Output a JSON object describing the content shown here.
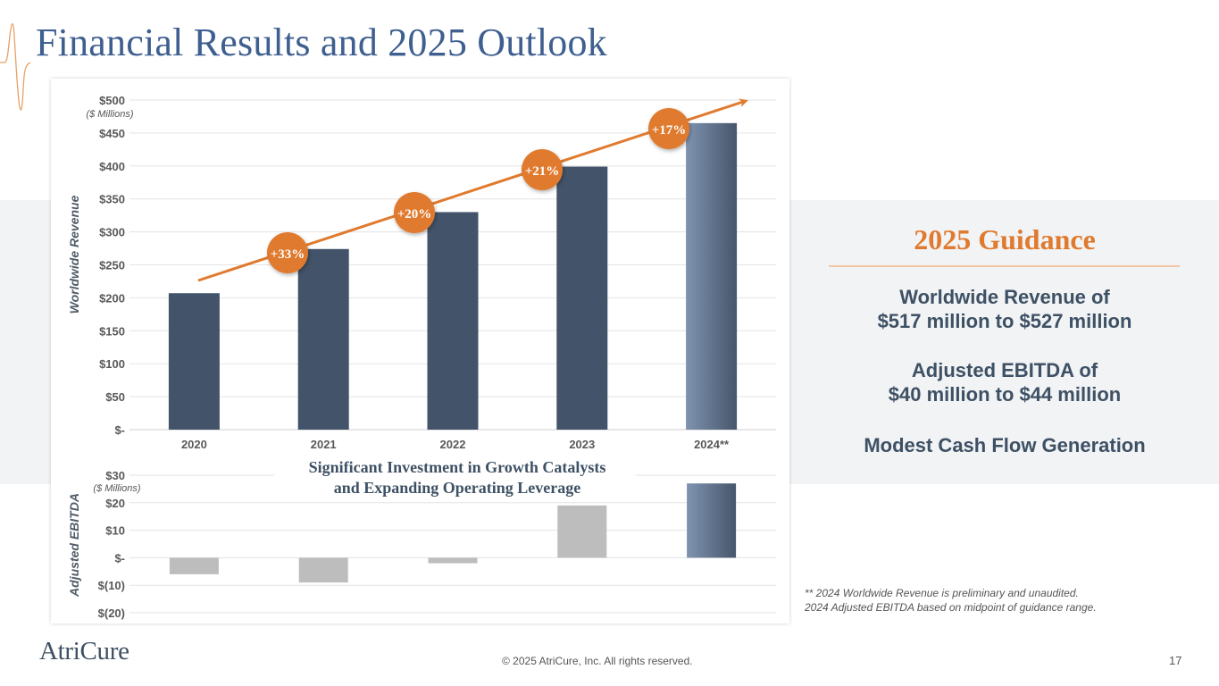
{
  "page": {
    "title": "Financial Results and 2025 Outlook",
    "page_number": "17",
    "copyright": "© 2025 AtriCure, Inc. All rights reserved.",
    "logo_text": "AtriCure"
  },
  "guidance": {
    "title": "2025 Guidance",
    "items": [
      {
        "line1": "Worldwide Revenue of",
        "line2": "$517 million to $527 million"
      },
      {
        "line1": "Adjusted EBITDA of",
        "line2": "$40 million to $44 million"
      },
      {
        "line1": "Modest Cash Flow Generation",
        "line2": ""
      }
    ]
  },
  "footnote": {
    "line1": "** 2024 Worldwide Revenue is preliminary and unaudited.",
    "line2": "2024 Adjusted EBITDA based on midpoint of guidance range."
  },
  "colors": {
    "accent_orange": "#e07a2e",
    "bar_navy": "#435369",
    "bar_gray": "#bdbdbd",
    "highlight_light": "#7f93b0",
    "highlight_dark": "#46566b",
    "title_blue": "#3e5f8f"
  },
  "chart_data": [
    {
      "type": "bar",
      "title": "",
      "xlabel": "",
      "ylabel": "Worldwide Revenue",
      "units_note": "($ Millions)",
      "categories": [
        "2020",
        "2021",
        "2022",
        "2023",
        "2024**"
      ],
      "values": [
        207,
        274,
        330,
        399,
        465
      ],
      "ylim": [
        0,
        500
      ],
      "yticks": [
        0,
        50,
        100,
        150,
        200,
        250,
        300,
        350,
        400,
        450,
        500
      ],
      "ytick_labels": [
        "$-",
        "$50",
        "$100",
        "$150",
        "$200",
        "$250",
        "$300",
        "$350",
        "$400",
        "$450",
        "$500"
      ],
      "grid": true,
      "growth_labels": [
        "+33%",
        "+20%",
        "+21%",
        "+17%"
      ],
      "trend_arrow": true
    },
    {
      "type": "bar",
      "title": "Significant Investment in Growth Catalysts and Expanding Operating Leverage",
      "title_lines": [
        "Significant Investment in Growth Catalysts",
        "and Expanding Operating Leverage"
      ],
      "xlabel": "",
      "ylabel": "Adjusted EBITDA",
      "units_note": "($ Millions)",
      "categories": [
        "2020",
        "2021",
        "2022",
        "2023",
        "2024**"
      ],
      "values": [
        -6,
        -9,
        -2,
        19,
        27
      ],
      "ylim": [
        -20,
        30
      ],
      "yticks": [
        -20,
        -10,
        0,
        10,
        20,
        30
      ],
      "ytick_labels": [
        "$(20)",
        "$(10)",
        "$-",
        "$10",
        "$20",
        "$30"
      ],
      "grid": true
    }
  ]
}
